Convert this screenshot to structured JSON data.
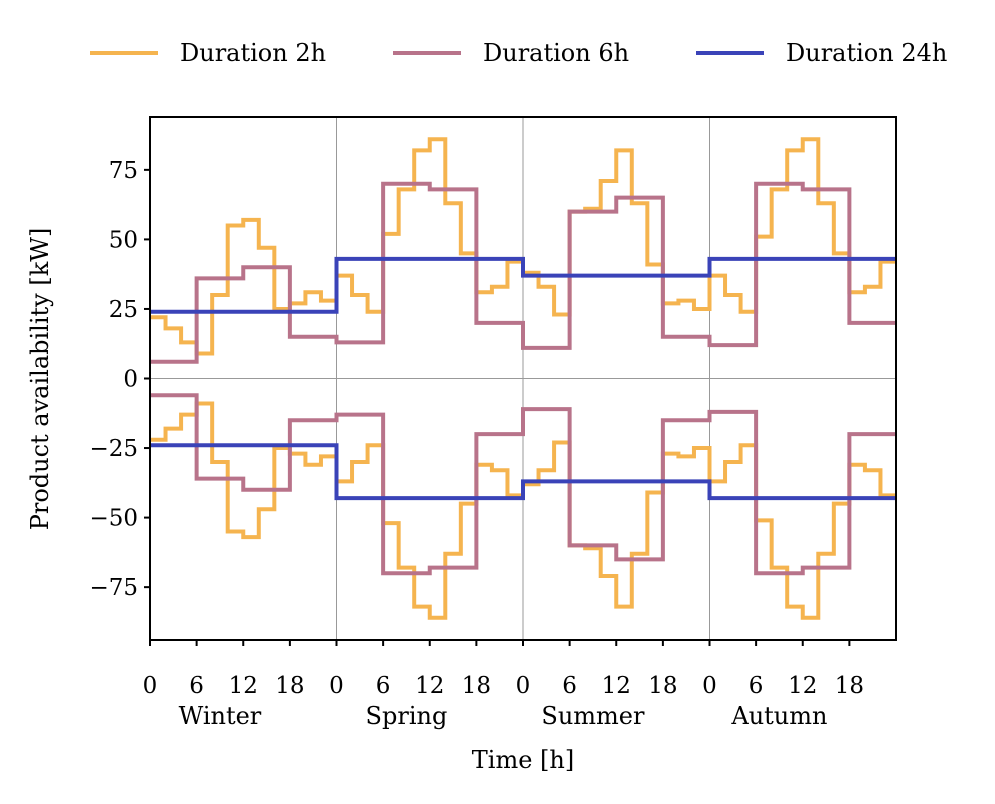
{
  "chart_data": {
    "type": "line",
    "step": true,
    "xlabel": "Time [h]",
    "ylabel": "Product availability [kW]",
    "xlim": [
      0,
      96
    ],
    "ylim": [
      -94,
      94
    ],
    "yticks": [
      -75,
      -50,
      -25,
      0,
      25,
      50,
      75
    ],
    "xticks": [
      0,
      6,
      12,
      18,
      24,
      30,
      36,
      42,
      48,
      54,
      60,
      66,
      72,
      78,
      84,
      90
    ],
    "xtick_labels": [
      "0",
      "6",
      "12",
      "18",
      "0",
      "6",
      "12",
      "18",
      "0",
      "6",
      "12",
      "18",
      "0",
      "6",
      "12",
      "18"
    ],
    "season_boundaries": [
      24,
      48,
      72
    ],
    "seasons": [
      "Winter",
      "Spring",
      "Summer",
      "Autumn"
    ],
    "legend_position": "top, outside",
    "series": [
      {
        "name": "Duration 2h",
        "color": "#f5b44f",
        "x": [
          0,
          2,
          4,
          6,
          8,
          10,
          12,
          14,
          16,
          18,
          20,
          22,
          24,
          26,
          28,
          30,
          32,
          34,
          36,
          38,
          40,
          42,
          44,
          46,
          48,
          50,
          52,
          54,
          56,
          58,
          60,
          62,
          64,
          66,
          68,
          70,
          72,
          74,
          76,
          78,
          80,
          82,
          84,
          86,
          88,
          90,
          92,
          94,
          96
        ],
        "upper": [
          22,
          18,
          13,
          9,
          30,
          55,
          57,
          47,
          25,
          27,
          31,
          28,
          37,
          30,
          24,
          52,
          68,
          82,
          86,
          63,
          45,
          31,
          33,
          42,
          38,
          33,
          23,
          60,
          61,
          71,
          82,
          63,
          41,
          27,
          28,
          25,
          37,
          30,
          24,
          51,
          68,
          82,
          86,
          63,
          45,
          31,
          33,
          42,
          42
        ]
      },
      {
        "name": "Duration 6h",
        "color": "#b8738a",
        "x": [
          0,
          6,
          12,
          18,
          24,
          30,
          36,
          42,
          48,
          54,
          60,
          66,
          72,
          78,
          84,
          90,
          96
        ],
        "upper": [
          6,
          36,
          40,
          15,
          13,
          70,
          68,
          20,
          11,
          60,
          65,
          15,
          12,
          70,
          68,
          20,
          20
        ]
      },
      {
        "name": "Duration 24h",
        "color": "#3a43b8",
        "x": [
          0,
          24,
          48,
          72,
          96
        ],
        "upper": [
          24,
          43,
          37,
          43,
          43
        ]
      }
    ],
    "mirror_negative": true
  }
}
